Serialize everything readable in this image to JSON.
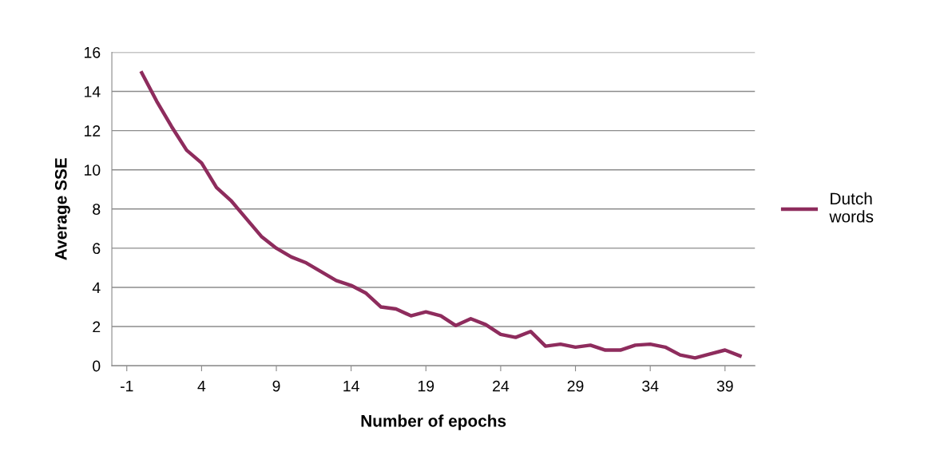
{
  "chart_data": {
    "type": "line",
    "xlabel": "Number of epochs",
    "ylabel": "Average SSE",
    "x": [
      0,
      1,
      2,
      3,
      4,
      5,
      6,
      7,
      8,
      9,
      10,
      11,
      12,
      13,
      14,
      15,
      16,
      17,
      18,
      19,
      20,
      21,
      22,
      23,
      24,
      25,
      26,
      27,
      28,
      29,
      30,
      31,
      32,
      33,
      34,
      35,
      36,
      37,
      38,
      39,
      40
    ],
    "series": [
      {
        "name": "Dutch\nwords",
        "color": "#8e2c5d",
        "values": [
          14.95,
          13.5,
          12.2,
          11.0,
          10.35,
          9.1,
          8.4,
          7.5,
          6.6,
          6.0,
          5.55,
          5.25,
          4.8,
          4.35,
          4.1,
          3.7,
          3.0,
          2.9,
          2.55,
          2.75,
          2.55,
          2.05,
          2.4,
          2.1,
          1.6,
          1.45,
          1.75,
          1.0,
          1.1,
          0.95,
          1.05,
          0.8,
          0.8,
          1.05,
          1.1,
          0.95,
          0.55,
          0.4,
          0.6,
          0.8,
          0.5
        ]
      }
    ],
    "xlim": [
      -2,
      41
    ],
    "xticks": [
      -1,
      4,
      9,
      14,
      19,
      24,
      29,
      34,
      39
    ],
    "ylim": [
      0,
      16
    ],
    "yticks": [
      0,
      2,
      4,
      6,
      8,
      10,
      12,
      14,
      16
    ],
    "grid": "y",
    "legend": "right",
    "marker": "none",
    "line_style": "solid"
  }
}
